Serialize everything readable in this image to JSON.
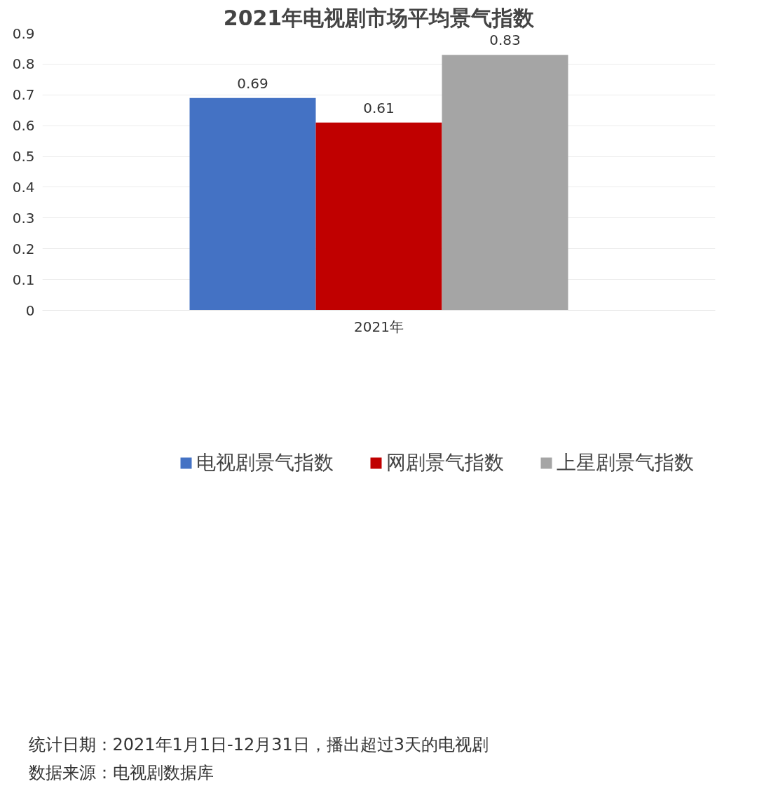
{
  "chart_data": {
    "type": "bar",
    "title": "2021年电视剧市场平均景气指数",
    "categories": [
      "2021年"
    ],
    "series": [
      {
        "name": "电视剧景气指数",
        "color": "#4472c4",
        "values": [
          0.69
        ]
      },
      {
        "name": "网剧景气指数",
        "color": "#c00000",
        "values": [
          0.61
        ]
      },
      {
        "name": "上星剧景气指数",
        "color": "#a5a5a5",
        "values": [
          0.83
        ]
      }
    ],
    "ylim": [
      0,
      0.9
    ],
    "yticks": [
      {
        "value": 0,
        "label": "0"
      },
      0.1,
      0.2,
      0.3,
      0.4,
      0.5,
      0.6,
      0.7,
      0.8,
      0.9
    ],
    "grid": "y",
    "legend": "bottom",
    "data_labels": true,
    "annotations": [
      "统计日期：2021年1月1日-12月31日，播出超过3天的电视剧",
      "数据来源：电视剧数据库"
    ]
  }
}
